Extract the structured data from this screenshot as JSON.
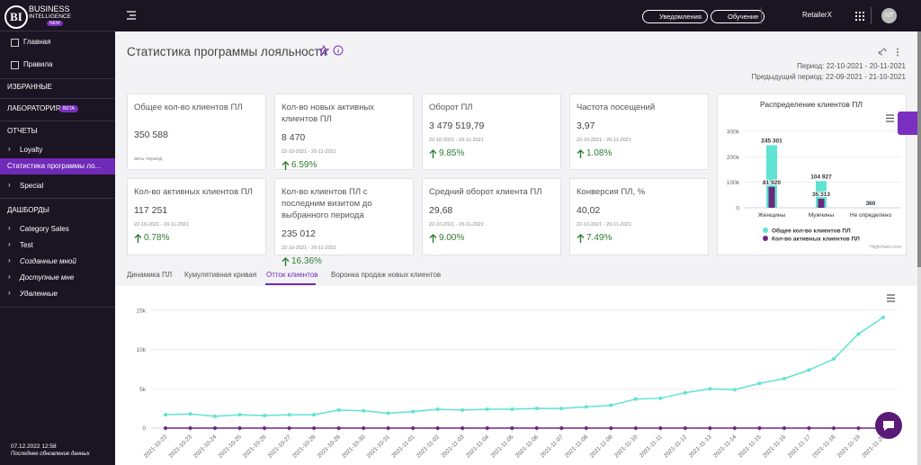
{
  "sidebar": {
    "logo": "BI",
    "brand_line1": "BUSINESS",
    "brand_line2": "INTELLIGENCE",
    "brand_badge": "NEW",
    "nav": [
      "Главная",
      "Правила"
    ],
    "favorites": "ИЗБРАННЫЕ",
    "lab": "ЛАБОРАТОРИЯ",
    "lab_badge": "BETA",
    "reports": "ОТЧЕТЫ",
    "report_items": [
      "Loyalty",
      "Статистика программы ло...",
      "Special"
    ],
    "dashboards": "ДАШБОРДЫ",
    "dashboard_items": [
      "Category Sales",
      "Test",
      "Созданные мной",
      "Доступные мне",
      "Удаленные"
    ],
    "footer_date": "07.12.2022 12:58",
    "footer_note": "Последнее обновление данных"
  },
  "topbar": {
    "notifications": "Уведомления",
    "learning": "Обучение",
    "account": "RetailerX",
    "avatar": "NT"
  },
  "header": {
    "title": "Статистика программы лояльности",
    "period": "Период: 22-10-2021 - 20-11-2021",
    "prev_period": "Предыдущий период: 22-09-2021 - 21-10-2021"
  },
  "cards": [
    {
      "title": "Общее кол-во клиентов ПЛ",
      "value": "350 588",
      "period": "весь период"
    },
    {
      "title": "Кол-во новых активных клиентов ПЛ",
      "value": "8 470",
      "period": "22-10-2021 - 20-11-2021",
      "change": "6.59%"
    },
    {
      "title": "Оборот ПЛ",
      "value": "3 479 519,79",
      "period": "22-10-2021 - 20-11-2021",
      "change": "9.85%"
    },
    {
      "title": "Частота посещений",
      "value": "3,97",
      "period": "22-10-2021 - 20-11-2021",
      "change": "1.08%"
    },
    {
      "title": "Кол-во активных клиентов ПЛ",
      "value": "117 251",
      "period": "22-10-2021 - 20-11-2021",
      "change": "0.78%"
    },
    {
      "title": "Кол-во клиентов ПЛ с последним визитом до выбранного периода",
      "value": "235 012",
      "period": "22-10-2021 - 20-11-2021",
      "change": "16.36%"
    },
    {
      "title": "Средний оборот клиента ПЛ",
      "value": "29,68",
      "period": "22-10-2021 - 20-11-2021",
      "change": "9.00%"
    },
    {
      "title": "Конверсия ПЛ, %",
      "value": "40,02",
      "period": "22-10-2021 - 20-11-2021",
      "change": "7.49%"
    }
  ],
  "tabs": [
    "Динамика ПЛ",
    "Кумулятивная кривая",
    "Отток клиентов",
    "Воронка продаж новых клиентов"
  ],
  "chart_data": [
    {
      "type": "bar",
      "title": "Распределение клиентов ПЛ",
      "categories": [
        "Женщины",
        "Мужчины",
        "Не определено"
      ],
      "series": [
        {
          "name": "Общее кол-во клиентов ПЛ",
          "color": "#5fe3d3",
          "values": [
            245301,
            104927,
            360
          ],
          "value_labels": [
            "245 301",
            "104 927",
            "360"
          ]
        },
        {
          "name": "Кол-во активных клиентов ПЛ",
          "color": "#6a2a7a",
          "values": [
            81920,
            35313,
            null
          ],
          "value_labels": [
            "81 920",
            "35 313",
            null
          ]
        }
      ],
      "ylim": [
        0,
        300000
      ],
      "yticks": [
        0,
        {
          "value": 100000,
          "label": "100k"
        },
        {
          "value": 200000,
          "label": "200k"
        },
        {
          "value": 300000,
          "label": "300k"
        }
      ],
      "grid": true,
      "credits": "Highcharts.com"
    },
    {
      "type": "line",
      "x": [
        "2021-10-22",
        "2021-10-23",
        "2021-10-24",
        "2021-10-25",
        "2021-10-26",
        "2021-10-27",
        "2021-10-28",
        "2021-10-29",
        "2021-10-30",
        "2021-10-31",
        "2021-11-01",
        "2021-11-02",
        "2021-11-03",
        "2021-11-04",
        "2021-11-05",
        "2021-11-06",
        "2021-11-07",
        "2021-11-08",
        "2021-11-09",
        "2021-11-10",
        "2021-11-11",
        "2021-11-12",
        "2021-11-13",
        "2021-11-14",
        "2021-11-15",
        "2021-11-16",
        "2021-11-17",
        "2021-11-18",
        "2021-11-19",
        "2021-11-20"
      ],
      "series": [
        {
          "color": "#5fe3d3",
          "values": [
            1700,
            1800,
            1500,
            1700,
            1600,
            1700,
            1700,
            2300,
            2200,
            1900,
            2100,
            2400,
            2300,
            2400,
            2400,
            2500,
            2500,
            2700,
            2900,
            3700,
            3800,
            4500,
            5000,
            4900,
            5700,
            6300,
            7400,
            8800,
            12000,
            14100
          ]
        },
        {
          "color": "#6a2a7a",
          "values": [
            0,
            0,
            0,
            0,
            0,
            0,
            0,
            0,
            0,
            0,
            0,
            0,
            0,
            0,
            0,
            0,
            0,
            0,
            0,
            0,
            0,
            0,
            0,
            0,
            0,
            0,
            0,
            0,
            0,
            0
          ]
        }
      ],
      "ylim": [
        0,
        15000
      ],
      "yticks": [
        0,
        {
          "value": 5000,
          "label": "5k"
        },
        {
          "value": 10000,
          "label": "10k"
        },
        {
          "value": 15000,
          "label": "15k"
        }
      ],
      "grid": true
    }
  ]
}
